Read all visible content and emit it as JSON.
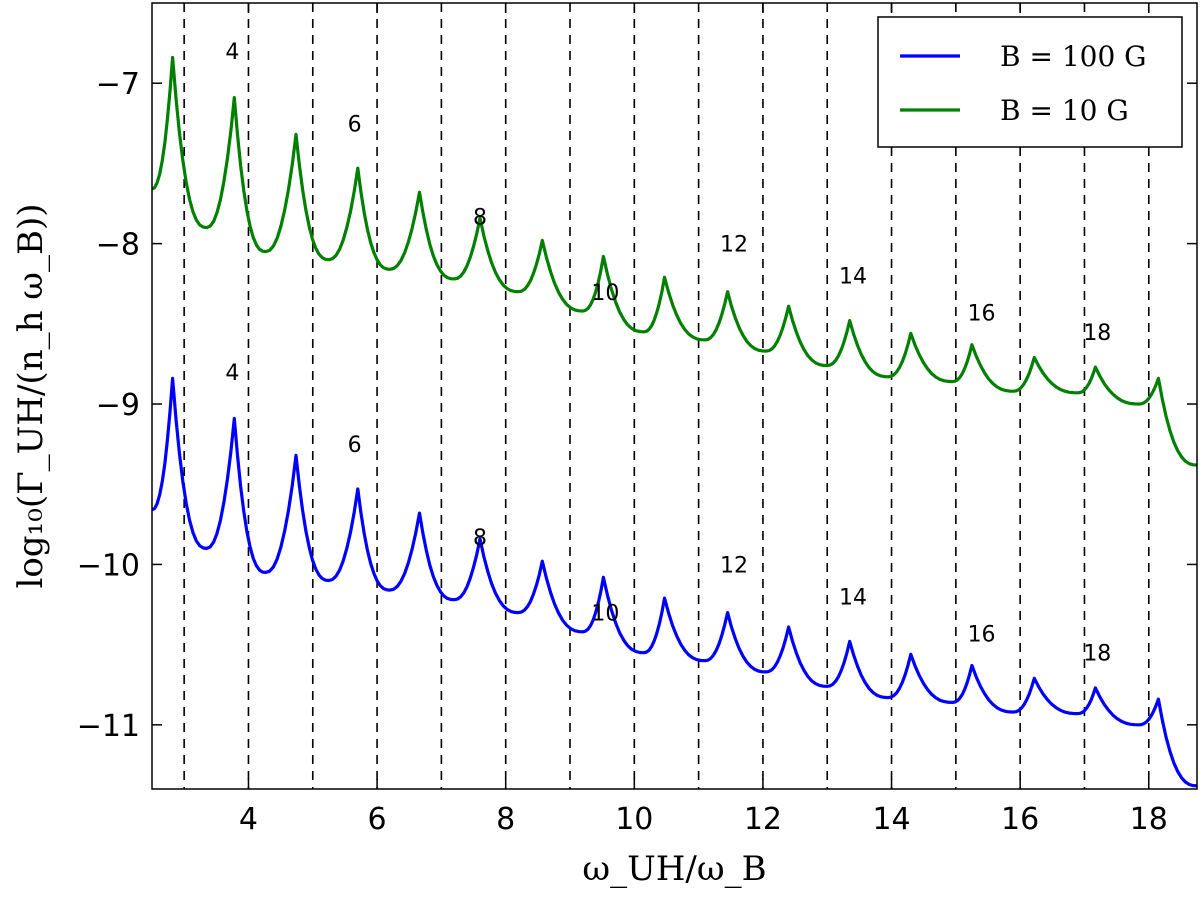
{
  "chart_data": {
    "type": "line",
    "xlabel": "ω_UH/ω_B",
    "ylabel": "log₁₀(Γ_UH/(n_h ω_B))",
    "xlim": [
      2.5,
      18.75
    ],
    "ylim": [
      -11.4,
      -6.5
    ],
    "x_ticks": [
      4,
      6,
      8,
      10,
      12,
      14,
      16,
      18
    ],
    "y_ticks": [
      -7,
      -8,
      -9,
      -10,
      -11
    ],
    "x_tick_labels": [
      "4",
      "6",
      "8",
      "10",
      "12",
      "14",
      "16",
      "18"
    ],
    "y_tick_labels": [
      "−7",
      "−8",
      "−9",
      "−10",
      "−11"
    ],
    "vlines": [
      3,
      4,
      5,
      6,
      7,
      8,
      9,
      10,
      11,
      12,
      13,
      14,
      15,
      16,
      17,
      18
    ],
    "grid": false,
    "legend_position": "top-right",
    "legend": [
      {
        "label": "B = 100 G",
        "color": "#0000ff"
      },
      {
        "label": "B = 10 G",
        "color": "#008000"
      }
    ],
    "peak_annotations": [
      {
        "text": "4",
        "x": 3.75,
        "y": -6.85
      },
      {
        "text": "6",
        "x": 5.65,
        "y": -7.3
      },
      {
        "text": "8",
        "x": 7.6,
        "y": -7.88
      },
      {
        "text": "10",
        "x": 9.55,
        "y": -8.35
      },
      {
        "text": "12",
        "x": 11.55,
        "y": -8.05
      },
      {
        "text": "14",
        "x": 13.4,
        "y": -8.25
      },
      {
        "text": "16",
        "x": 15.4,
        "y": -8.48
      },
      {
        "text": "18",
        "x": 17.2,
        "y": -8.6
      },
      {
        "text": "4",
        "x": 3.75,
        "y": -8.85
      },
      {
        "text": "6",
        "x": 5.65,
        "y": -9.3
      },
      {
        "text": "8",
        "x": 7.6,
        "y": -9.88
      },
      {
        "text": "10",
        "x": 9.55,
        "y": -10.35
      },
      {
        "text": "12",
        "x": 11.55,
        "y": -10.05
      },
      {
        "text": "14",
        "x": 13.4,
        "y": -10.25
      },
      {
        "text": "16",
        "x": 15.4,
        "y": -10.48
      },
      {
        "text": "18",
        "x": 17.2,
        "y": -10.6
      }
    ],
    "series": [
      {
        "name": "B = 100 G",
        "color": "#0000ff",
        "peaks": [
          {
            "x": 2.82,
            "y": -8.84
          },
          {
            "x": 3.78,
            "y": -9.09
          },
          {
            "x": 4.74,
            "y": -9.32
          },
          {
            "x": 5.7,
            "y": -9.53
          },
          {
            "x": 6.66,
            "y": -9.68
          },
          {
            "x": 7.6,
            "y": -9.84
          },
          {
            "x": 8.57,
            "y": -9.98
          },
          {
            "x": 9.52,
            "y": -10.08
          },
          {
            "x": 10.47,
            "y": -10.21
          },
          {
            "x": 11.45,
            "y": -10.3
          },
          {
            "x": 12.4,
            "y": -10.39
          },
          {
            "x": 13.35,
            "y": -10.48
          },
          {
            "x": 14.3,
            "y": -10.56
          },
          {
            "x": 15.25,
            "y": -10.63
          },
          {
            "x": 16.22,
            "y": -10.71
          },
          {
            "x": 17.17,
            "y": -10.77
          },
          {
            "x": 18.15,
            "y": -10.84
          }
        ],
        "troughs": [
          {
            "x": 2.5,
            "y": -9.66
          },
          {
            "x": 3.35,
            "y": -9.9
          },
          {
            "x": 4.27,
            "y": -10.05
          },
          {
            "x": 5.25,
            "y": -10.1
          },
          {
            "x": 6.2,
            "y": -10.16
          },
          {
            "x": 7.2,
            "y": -10.22
          },
          {
            "x": 8.2,
            "y": -10.3
          },
          {
            "x": 9.2,
            "y": -10.42
          },
          {
            "x": 10.15,
            "y": -10.55
          },
          {
            "x": 11.1,
            "y": -10.6
          },
          {
            "x": 12.05,
            "y": -10.67
          },
          {
            "x": 13.0,
            "y": -10.76
          },
          {
            "x": 13.95,
            "y": -10.83
          },
          {
            "x": 14.95,
            "y": -10.86
          },
          {
            "x": 15.9,
            "y": -10.92
          },
          {
            "x": 16.9,
            "y": -10.93
          },
          {
            "x": 17.85,
            "y": -11.0
          }
        ],
        "end": {
          "x": 18.75,
          "y": -11.38
        }
      },
      {
        "name": "B = 10 G",
        "color": "#008000",
        "peaks": [
          {
            "x": 2.82,
            "y": -6.84
          },
          {
            "x": 3.78,
            "y": -7.09
          },
          {
            "x": 4.74,
            "y": -7.32
          },
          {
            "x": 5.7,
            "y": -7.53
          },
          {
            "x": 6.66,
            "y": -7.68
          },
          {
            "x": 7.6,
            "y": -7.84
          },
          {
            "x": 8.57,
            "y": -7.98
          },
          {
            "x": 9.52,
            "y": -8.08
          },
          {
            "x": 10.47,
            "y": -8.21
          },
          {
            "x": 11.45,
            "y": -8.3
          },
          {
            "x": 12.4,
            "y": -8.39
          },
          {
            "x": 13.35,
            "y": -8.48
          },
          {
            "x": 14.3,
            "y": -8.56
          },
          {
            "x": 15.25,
            "y": -8.63
          },
          {
            "x": 16.22,
            "y": -8.71
          },
          {
            "x": 17.17,
            "y": -8.77
          },
          {
            "x": 18.15,
            "y": -8.84
          }
        ],
        "troughs": [
          {
            "x": 2.5,
            "y": -7.66
          },
          {
            "x": 3.35,
            "y": -7.9
          },
          {
            "x": 4.27,
            "y": -8.05
          },
          {
            "x": 5.25,
            "y": -8.1
          },
          {
            "x": 6.2,
            "y": -8.16
          },
          {
            "x": 7.2,
            "y": -8.22
          },
          {
            "x": 8.2,
            "y": -8.3
          },
          {
            "x": 9.2,
            "y": -8.42
          },
          {
            "x": 10.15,
            "y": -8.55
          },
          {
            "x": 11.1,
            "y": -8.6
          },
          {
            "x": 12.05,
            "y": -8.67
          },
          {
            "x": 13.0,
            "y": -8.76
          },
          {
            "x": 13.95,
            "y": -8.83
          },
          {
            "x": 14.95,
            "y": -8.86
          },
          {
            "x": 15.9,
            "y": -8.92
          },
          {
            "x": 16.9,
            "y": -8.93
          },
          {
            "x": 17.85,
            "y": -9.0
          }
        ],
        "end": {
          "x": 18.75,
          "y": -9.38
        }
      }
    ]
  }
}
